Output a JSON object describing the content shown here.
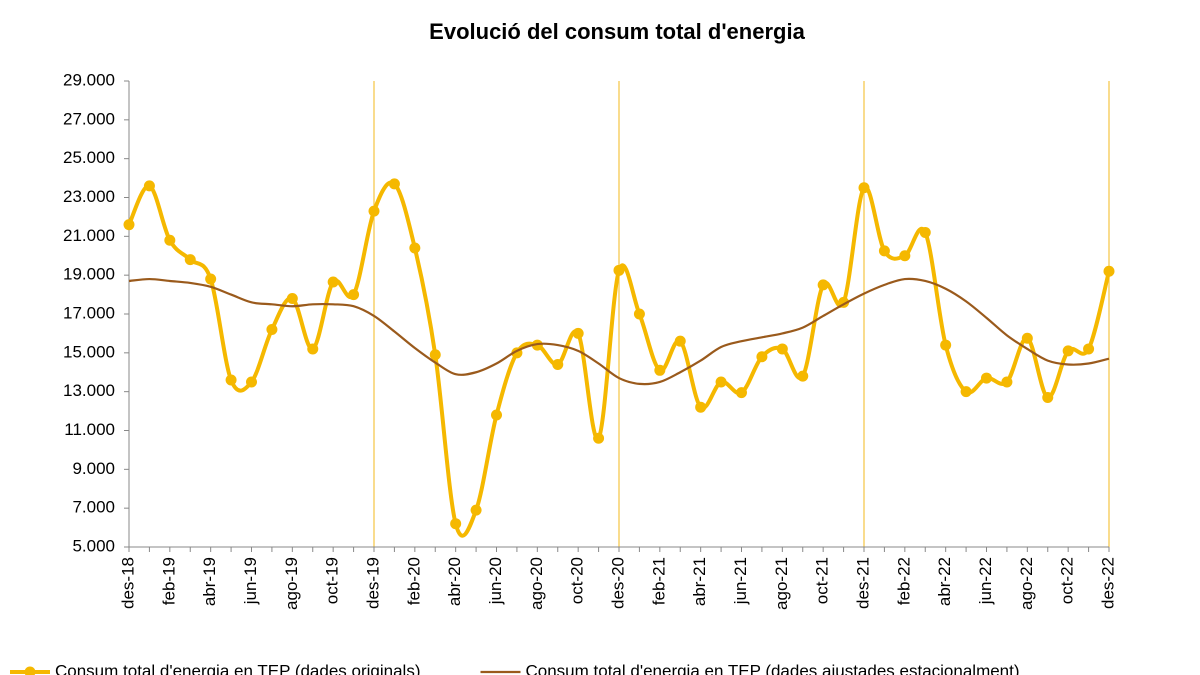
{
  "chart_data": {
    "type": "line",
    "title": "Evolució del consum total d'energia",
    "categories": [
      "des-18",
      null,
      "feb-19",
      null,
      "abr-19",
      null,
      "jun-19",
      null,
      "ago-19",
      null,
      "oct-19",
      null,
      "des-19",
      null,
      "feb-20",
      null,
      "abr-20",
      null,
      "jun-20",
      null,
      "ago-20",
      null,
      "oct-20",
      null,
      "des-20",
      null,
      "feb-21",
      null,
      "abr-21",
      null,
      "jun-21",
      null,
      "ago-21",
      null,
      "oct-21",
      null,
      "des-21",
      null,
      "feb-22",
      null,
      "abr-22",
      null,
      "jun-22",
      null,
      "ago-22",
      null,
      "oct-22",
      null,
      "des-22"
    ],
    "series": [
      {
        "name": "Consum total d'energia en TEP (dades originals)",
        "color": "#f5b800",
        "markers": true,
        "values": [
          21600,
          23600,
          20800,
          19800,
          18800,
          13600,
          13500,
          16200,
          17800,
          15200,
          18650,
          18000,
          22300,
          23700,
          20400,
          14900,
          6200,
          6900,
          11800,
          15000,
          15400,
          14400,
          16000,
          10600,
          19250,
          17000,
          14100,
          15600,
          12200,
          13500,
          12950,
          14800,
          15200,
          13800,
          18500,
          17600,
          23500,
          20250,
          20000,
          21200,
          15400,
          13000,
          13700,
          13500,
          15750,
          12700,
          15100,
          15200,
          19200
        ]
      },
      {
        "name": "Consum total d'energia en TEP (dades ajustades estacionalment)",
        "color": "#9a5a1c",
        "markers": false,
        "values": [
          18700,
          18800,
          18700,
          18600,
          18400,
          18000,
          17600,
          17500,
          17400,
          17500,
          17500,
          17400,
          16900,
          16100,
          15250,
          14500,
          13900,
          14000,
          14450,
          15100,
          15450,
          15400,
          15100,
          14450,
          13700,
          13400,
          13500,
          14000,
          14600,
          15300,
          15600,
          15800,
          16000,
          16300,
          16900,
          17500,
          18050,
          18500,
          18800,
          18700,
          18300,
          17650,
          16800,
          15900,
          15200,
          14600,
          14400,
          14450,
          14700
        ]
      }
    ],
    "ylim": [
      5000,
      29000
    ],
    "yticks": [
      {
        "value": 5000,
        "label": "5.000"
      },
      {
        "value": 7000,
        "label": "7.000"
      },
      {
        "value": 9000,
        "label": "9.000"
      },
      {
        "value": 11000,
        "label": "11.000"
      },
      {
        "value": 13000,
        "label": "13.000"
      },
      {
        "value": 15000,
        "label": "15.000"
      },
      {
        "value": 17000,
        "label": "17.000"
      },
      {
        "value": 19000,
        "label": "19.000"
      },
      {
        "value": 21000,
        "label": "21.000"
      },
      {
        "value": 23000,
        "label": "23.000"
      },
      {
        "value": 25000,
        "label": "25.000"
      },
      {
        "value": 27000,
        "label": "27.000"
      },
      {
        "value": 29000,
        "label": "29.000"
      }
    ],
    "year_line_color": "#f5c542",
    "legend": "bottom"
  }
}
